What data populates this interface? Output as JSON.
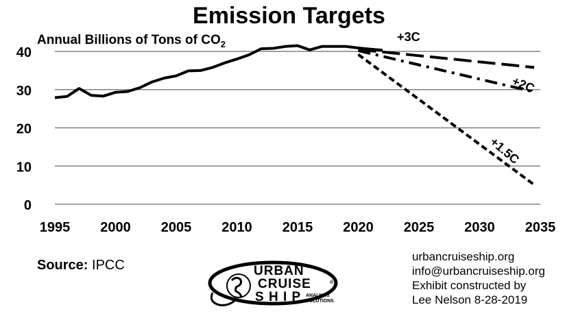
{
  "chart_data": {
    "type": "line",
    "title": "Emission Targets",
    "ylabel_main": "Annual Billions of Tons of CO",
    "ylabel_sub": "2",
    "xlim": [
      1995,
      2035
    ],
    "ylim": [
      0,
      40
    ],
    "x_ticks": [
      "1995",
      "2000",
      "2005",
      "2010",
      "2015",
      "2020",
      "2025",
      "2030",
      "2035"
    ],
    "y_ticks": [
      "0",
      "10",
      "20",
      "30",
      "40"
    ],
    "grid": true,
    "series": [
      {
        "style": "solid",
        "x": [
          1995,
          1996,
          1997,
          1998,
          1999,
          2000,
          2001,
          2002,
          2003,
          2004,
          2005,
          2006,
          2007,
          2008,
          2009,
          2010,
          2011,
          2012,
          2013,
          2014,
          2015,
          2016,
          2017,
          2018,
          2019,
          2020,
          2021,
          2022
        ],
        "y": [
          27.9,
          28.2,
          30.3,
          28.5,
          28.3,
          29.3,
          29.5,
          30.5,
          32.0,
          33.0,
          33.6,
          34.9,
          35.0,
          35.8,
          37.0,
          38.0,
          39.1,
          40.7,
          40.8,
          41.3,
          41.5,
          40.4,
          41.3,
          41.3,
          41.3,
          40.9,
          40.6,
          40.3
        ]
      },
      {
        "name": "+3C",
        "style": "long-dash",
        "x": [
          2020,
          2034.5
        ],
        "y": [
          40.5,
          35.8
        ]
      },
      {
        "name": "+2C",
        "style": "dash-dot",
        "x": [
          2020,
          2034.5
        ],
        "y": [
          40.2,
          29.4
        ]
      },
      {
        "name": "+1.5C",
        "style": "short-dash",
        "x": [
          2020,
          2034.5
        ],
        "y": [
          39.2,
          5.1
        ]
      }
    ],
    "annotations": [
      {
        "text": "+3C",
        "x": 2023.2,
        "y": 42.7,
        "rotate": 0
      },
      {
        "text": "+2C",
        "x": 2032.6,
        "y": 31.4,
        "rotate": 22
      },
      {
        "text": "+1.5C",
        "x": 2030.8,
        "y": 16.0,
        "rotate": 40
      }
    ]
  },
  "source": {
    "label": "Source:",
    "value": "IPCC"
  },
  "credits": [
    "urbancruiseship.org",
    "info@urbancruiseship.org",
    "Exhibit constructed by",
    "Lee Nelson 8-28-2019"
  ],
  "logo": {
    "line1": "URBAN",
    "line2": "CRUISE",
    "line3": "S H I P",
    "line4a": "ANALYSIS",
    "line4b": "SOLUTIONS",
    "mark": "®"
  }
}
